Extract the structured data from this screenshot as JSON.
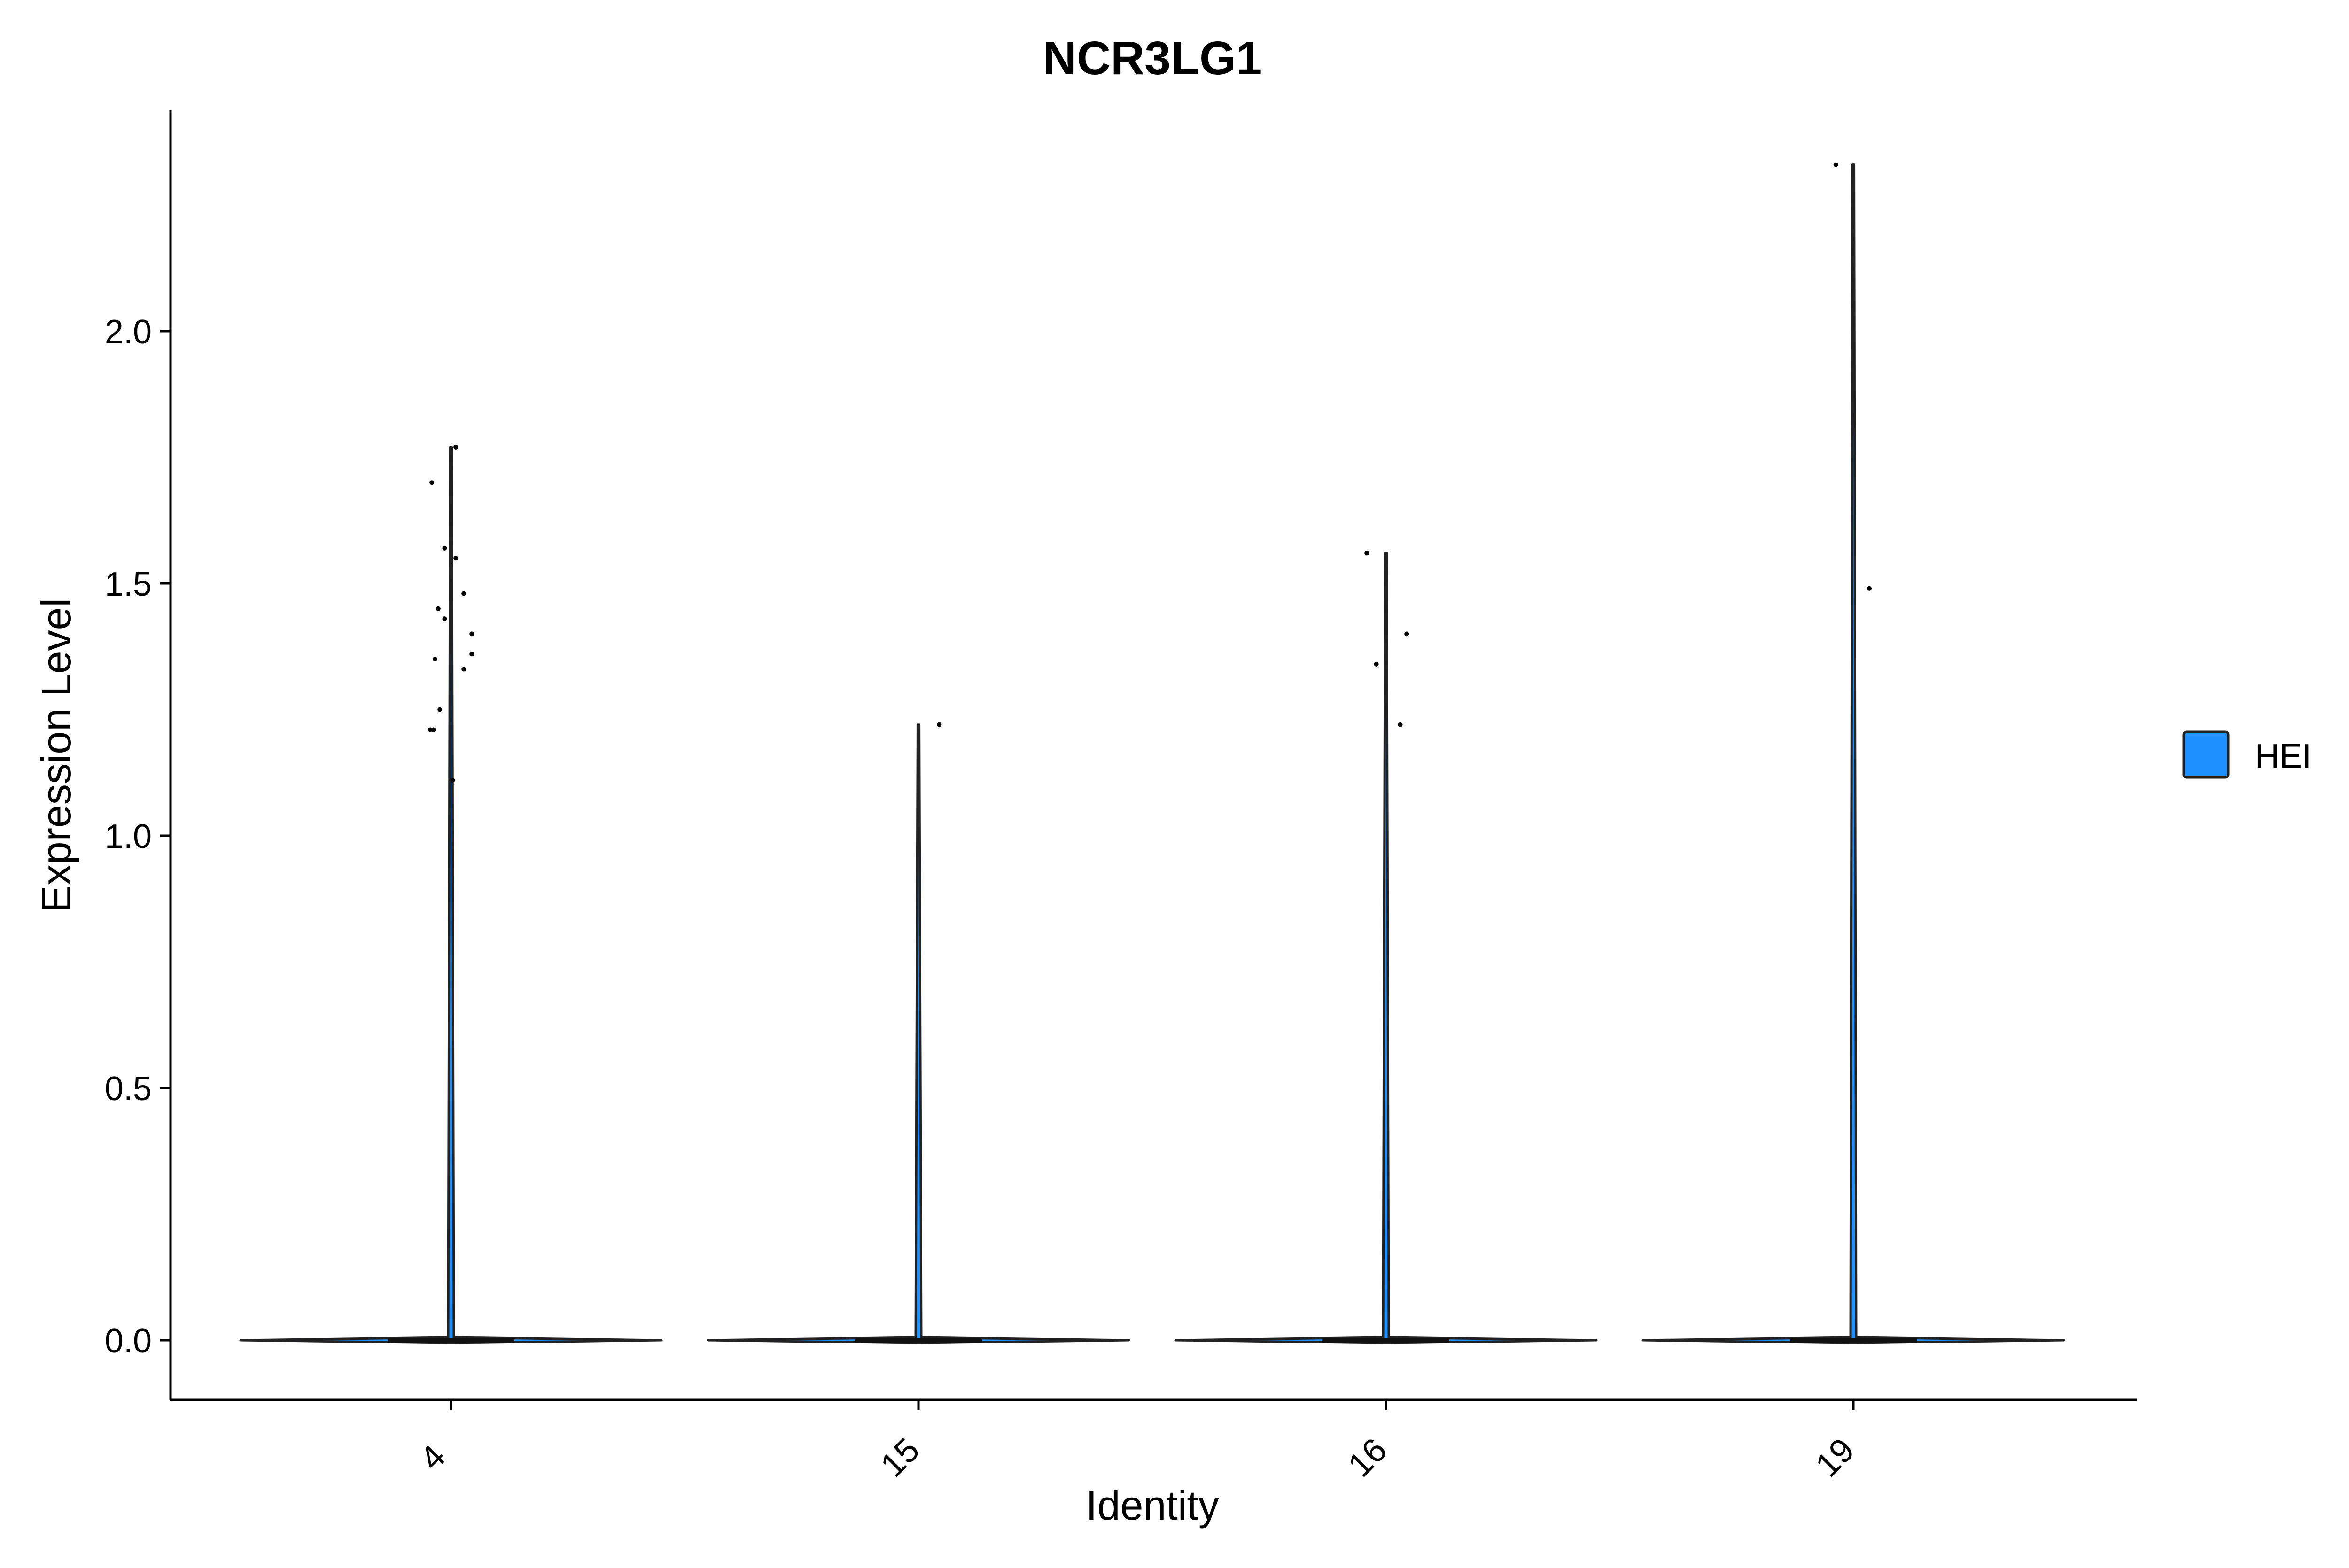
{
  "chart_data": {
    "type": "violin",
    "title": "NCR3LG1",
    "xlabel": "Identity",
    "ylabel": "Expression Level",
    "categories": [
      "4",
      "15",
      "16",
      "19"
    ],
    "ylim": [
      -0.12,
      2.55
    ],
    "yticks": [
      0.0,
      0.5,
      1.0,
      1.5,
      2.0
    ],
    "ytick_labels": [
      "0.0",
      "0.5",
      "1.0",
      "1.5",
      "2.0"
    ],
    "grid": false,
    "legend_position": "right",
    "series": [
      {
        "name": "HEI",
        "color": "#1E90FF",
        "groups": [
          {
            "category": "4",
            "max": 1.77,
            "points": [
              {
                "x": -0.12,
                "y": 1.7
              },
              {
                "x": -0.04,
                "y": 1.57
              },
              {
                "x": 0.03,
                "y": 1.55
              },
              {
                "x": -0.08,
                "y": 1.45
              },
              {
                "x": -0.04,
                "y": 1.43
              },
              {
                "x": 0.08,
                "y": 1.48
              },
              {
                "x": 0.13,
                "y": 1.4
              },
              {
                "x": 0.13,
                "y": 1.36
              },
              {
                "x": -0.1,
                "y": 1.35
              },
              {
                "x": 0.08,
                "y": 1.33
              },
              {
                "x": -0.07,
                "y": 1.25
              },
              {
                "x": -0.13,
                "y": 1.21
              },
              {
                "x": -0.11,
                "y": 1.21
              },
              {
                "x": 0.01,
                "y": 1.11
              },
              {
                "x": 0.03,
                "y": 1.77
              }
            ]
          },
          {
            "category": "15",
            "max": 1.22,
            "points": [
              {
                "x": 0.13,
                "y": 1.22
              }
            ]
          },
          {
            "category": "16",
            "max": 1.56,
            "points": [
              {
                "x": -0.12,
                "y": 1.56
              },
              {
                "x": -0.06,
                "y": 1.34
              },
              {
                "x": 0.13,
                "y": 1.4
              },
              {
                "x": 0.09,
                "y": 1.22
              }
            ]
          },
          {
            "category": "19",
            "max": 2.33,
            "points": [
              {
                "x": -0.11,
                "y": 2.33
              },
              {
                "x": 0.1,
                "y": 1.49
              }
            ]
          }
        ]
      }
    ]
  }
}
